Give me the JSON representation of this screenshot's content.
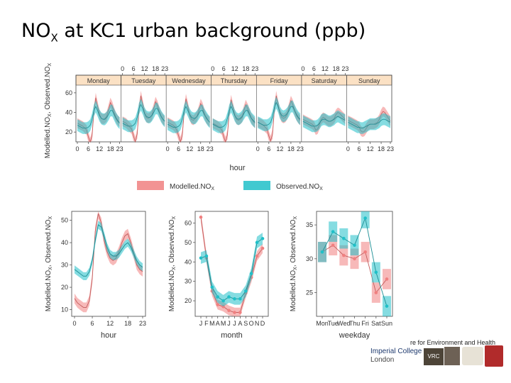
{
  "slide": {
    "title": "NO",
    "title_sub": "X",
    "title_rest": " at KC1 urban background (ppb)"
  },
  "footer": {
    "centre_text": "re for Environment and Health",
    "college_line1": "Imperial College",
    "college_line2": "London",
    "logo_vrc": "VRC"
  },
  "colors": {
    "modelled": "#f08080",
    "observed": "#20c0c8",
    "strip": "#fbe1c4",
    "axis": "#444444"
  },
  "chart_data": [
    {
      "type": "line",
      "panel": "weekly",
      "days": [
        "Monday",
        "Tuesday",
        "Wednesday",
        "Thursday",
        "Friday",
        "Saturday",
        "Sunday"
      ],
      "hour_ticks": [
        "0",
        "6",
        "12",
        "18",
        "23"
      ],
      "ylabel": "ModelledNO<X>, ObservedNO<X>",
      "ylabel_parts": [
        "Modelled.NO",
        "X",
        ", Observed.NO",
        "X"
      ],
      "xlabel": "hour",
      "yticks": [
        20,
        40,
        60
      ],
      "ylim": [
        10,
        78
      ],
      "series": [
        {
          "name": "Modelled.NO",
          "name_sub": "X",
          "days": [
            [
              29,
              28,
              27,
              26,
              24,
              22,
              15,
              9,
              16,
              41,
              55,
              46,
              38,
              34,
              33,
              34,
              36,
              43,
              50,
              46,
              40,
              35,
              32,
              30
            ],
            [
              31,
              30,
              29,
              27,
              25,
              23,
              16,
              10,
              18,
              43,
              57,
              48,
              39,
              35,
              34,
              35,
              37,
              44,
              51,
              47,
              41,
              36,
              33,
              31
            ],
            [
              30,
              29,
              28,
              27,
              25,
              22,
              16,
              10,
              17,
              41,
              54,
              46,
              37,
              33,
              32,
              34,
              36,
              42,
              49,
              45,
              39,
              34,
              32,
              30
            ],
            [
              29,
              28,
              27,
              26,
              24,
              22,
              15,
              10,
              17,
              40,
              53,
              45,
              37,
              33,
              32,
              33,
              35,
              42,
              48,
              44,
              39,
              34,
              31,
              29
            ],
            [
              30,
              29,
              28,
              27,
              25,
              23,
              16,
              11,
              18,
              43,
              57,
              48,
              39,
              35,
              34,
              35,
              38,
              45,
              52,
              48,
              42,
              37,
              34,
              32
            ],
            [
              33,
              32,
              31,
              30,
              29,
              28,
              26,
              22,
              23,
              28,
              33,
              35,
              34,
              32,
              31,
              31,
              32,
              34,
              38,
              40,
              39,
              37,
              35,
              33
            ],
            [
              32,
              31,
              30,
              29,
              28,
              27,
              25,
              21,
              20,
              21,
              24,
              27,
              28,
              28,
              28,
              29,
              30,
              33,
              38,
              41,
              40,
              37,
              34,
              31
            ]
          ],
          "band": 5
        },
        {
          "name": "Observed.NO",
          "name_sub": "X",
          "days": [
            [
              27,
              26,
              25,
              24,
              24,
              24,
              25,
              27,
              33,
              42,
              46,
              42,
              37,
              34,
              33,
              33,
              35,
              38,
              42,
              42,
              38,
              34,
              31,
              29
            ],
            [
              29,
              28,
              27,
              26,
              26,
              26,
              27,
              29,
              35,
              44,
              48,
              44,
              39,
              36,
              35,
              35,
              37,
              40,
              44,
              44,
              40,
              36,
              33,
              31
            ],
            [
              28,
              27,
              26,
              25,
              25,
              25,
              26,
              28,
              34,
              42,
              46,
              42,
              38,
              35,
              34,
              34,
              36,
              39,
              42,
              42,
              38,
              35,
              32,
              30
            ],
            [
              28,
              27,
              26,
              25,
              25,
              25,
              26,
              28,
              34,
              42,
              46,
              42,
              37,
              34,
              33,
              34,
              36,
              39,
              42,
              42,
              38,
              34,
              32,
              30
            ],
            [
              30,
              29,
              28,
              27,
              27,
              27,
              28,
              30,
              36,
              45,
              50,
              46,
              40,
              37,
              36,
              37,
              39,
              42,
              46,
              46,
              42,
              38,
              35,
              33
            ],
            [
              31,
              30,
              29,
              28,
              27,
              26,
              26,
              26,
              27,
              29,
              32,
              33,
              33,
              32,
              31,
              31,
              32,
              33,
              35,
              36,
              35,
              34,
              33,
              32
            ],
            [
              30,
              29,
              28,
              27,
              26,
              25,
              25,
              24,
              24,
              25,
              26,
              27,
              28,
              28,
              28,
              28,
              29,
              30,
              32,
              33,
              33,
              32,
              31,
              30
            ]
          ],
          "band": 6
        }
      ]
    },
    {
      "type": "line",
      "panel": "hour",
      "x": [
        0,
        1,
        2,
        3,
        4,
        5,
        6,
        7,
        8,
        9,
        10,
        11,
        12,
        13,
        14,
        15,
        16,
        17,
        18,
        19,
        20,
        21,
        22,
        23
      ],
      "xticks": [
        0,
        6,
        12,
        18,
        23
      ],
      "yticks": [
        10,
        20,
        30,
        40,
        50
      ],
      "ylim": [
        7,
        54
      ],
      "xlabel": "hour",
      "ylabel": "ModelledNO<X>, ObservedNO<X>",
      "ylabel_parts": [
        "Modelled.NO",
        "X",
        ", Observed.NO",
        "X"
      ],
      "series": [
        {
          "name": "Modelled.NO",
          "name_sub": "X",
          "values": [
            15,
            13,
            12,
            11,
            11,
            14,
            24,
            45,
            53,
            49,
            41,
            36,
            33,
            32,
            33,
            36,
            40,
            43,
            44,
            40,
            35,
            30,
            28,
            27
          ],
          "band": 2.2
        },
        {
          "name": "Observed.NO",
          "name_sub": "X",
          "values": [
            28,
            27,
            26,
            25,
            25,
            27,
            32,
            41,
            48,
            47,
            43,
            38,
            35,
            34,
            34,
            35,
            37,
            39,
            40,
            38,
            35,
            32,
            30,
            29
          ],
          "band": 1.8
        }
      ]
    },
    {
      "type": "line",
      "panel": "month",
      "categories": [
        "J",
        "F",
        "M",
        "A",
        "M",
        "J",
        "J",
        "A",
        "S",
        "O",
        "N",
        "D"
      ],
      "yticks": [
        20,
        30,
        40,
        50,
        60
      ],
      "ylim": [
        12,
        66
      ],
      "xlabel": "month",
      "ylabel": "ModelledNO<X>, ObservedNO<X>",
      "ylabel_parts": [
        "Modelled.NO",
        "X",
        ", Observed.NO",
        "X"
      ],
      "series": [
        {
          "name": "Modelled.NO",
          "name_sub": "X",
          "values": [
            63,
            42,
            25,
            18,
            17,
            15,
            14,
            14,
            24,
            32,
            43,
            47
          ],
          "band": 2.5
        },
        {
          "name": "Observed.NO",
          "name_sub": "X",
          "values": [
            42,
            43,
            27,
            22,
            20,
            22,
            21,
            21,
            25,
            34,
            50,
            52
          ],
          "band": 3
        }
      ]
    },
    {
      "type": "line",
      "panel": "weekday",
      "categories": [
        "Mon",
        "Tue",
        "Wed",
        "Thu",
        "Fri",
        "Sat",
        "Sun"
      ],
      "yticks": [
        25,
        30,
        35
      ],
      "ylim": [
        21.5,
        37
      ],
      "xlabel": "weekday",
      "ylabel": "ModelledNO<X>, ObservedNO<X>",
      "ylabel_parts": [
        "Modelled.NO",
        "X",
        ", Observed.NO",
        "X"
      ],
      "series": [
        {
          "name": "Modelled.NO",
          "name_sub": "X",
          "values": [
            31,
            32,
            30.5,
            30,
            31,
            25,
            27
          ],
          "band": 1.5
        },
        {
          "name": "Observed.NO",
          "name_sub": "X",
          "values": [
            31,
            34,
            33,
            32,
            36,
            28,
            23
          ],
          "band": 1.5
        }
      ]
    }
  ]
}
